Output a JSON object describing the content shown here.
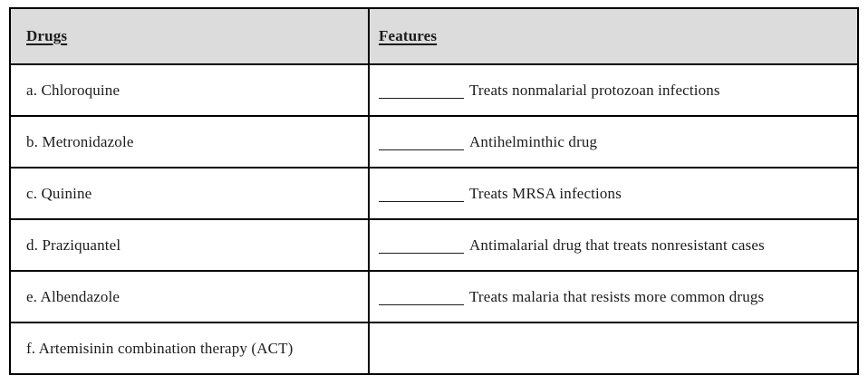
{
  "table": {
    "columns": [
      {
        "label": "Drugs"
      },
      {
        "label": "Features"
      }
    ],
    "rows": [
      {
        "drug": "a. Chloroquine",
        "feature": "Treats nonmalarial protozoan infections",
        "has_blank": true
      },
      {
        "drug": "b. Metronidazole",
        "feature": "Antihelminthic drug",
        "has_blank": true
      },
      {
        "drug": "c. Quinine",
        "feature": "Treats MRSA infections",
        "has_blank": true
      },
      {
        "drug": "d. Praziquantel",
        "feature": "Antimalarial drug that treats nonresistant cases",
        "has_blank": true
      },
      {
        "drug": "e. Albendazole",
        "feature": "Treats malaria that resists more common drugs",
        "has_blank": true
      },
      {
        "drug": "f. Artemisinin combination therapy (ACT)",
        "feature": "",
        "has_blank": false
      }
    ],
    "colors": {
      "header_bg": "#dcdcdc",
      "border": "#000000",
      "text": "#1c1c1c"
    }
  }
}
